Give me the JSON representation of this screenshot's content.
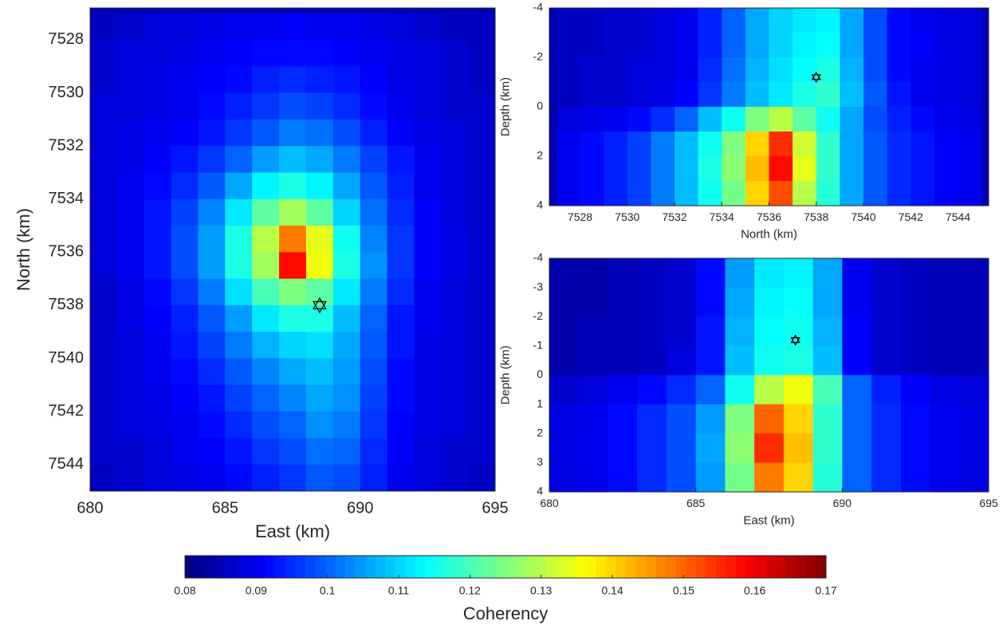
{
  "chart_data": [
    {
      "type": "heatmap",
      "xlabel": "East (km)",
      "ylabel": "North (km)",
      "colormap": "jet",
      "clim": [
        0.08,
        0.17
      ],
      "yreverse": true,
      "xlim": [
        680,
        695
      ],
      "ylim": [
        7526.8,
        7545
      ],
      "xticks": [
        680,
        685,
        690,
        695
      ],
      "yticks": [
        7528,
        7530,
        7532,
        7534,
        7536,
        7538,
        7540,
        7542,
        7544
      ],
      "x": [
        680.5,
        681.5,
        682.5,
        683.5,
        684.5,
        685.5,
        686.5,
        687.5,
        688.5,
        689.5,
        690.5,
        691.5,
        692.5,
        693.5,
        694.5
      ],
      "y": [
        7527.5,
        7528.5,
        7529.5,
        7530.5,
        7531.5,
        7532.5,
        7533.5,
        7534.5,
        7535.5,
        7536.5,
        7537.5,
        7538.5,
        7539.5,
        7540.5,
        7541.5,
        7542.5,
        7543.5,
        7544.5
      ],
      "z": [
        [
          0.086,
          0.087,
          0.088,
          0.088,
          0.089,
          0.09,
          0.09,
          0.091,
          0.09,
          0.09,
          0.089,
          0.088,
          0.087,
          0.086,
          0.086
        ],
        [
          0.087,
          0.088,
          0.088,
          0.089,
          0.09,
          0.091,
          0.092,
          0.092,
          0.092,
          0.091,
          0.09,
          0.089,
          0.088,
          0.087,
          0.086
        ],
        [
          0.087,
          0.088,
          0.089,
          0.09,
          0.091,
          0.092,
          0.094,
          0.095,
          0.094,
          0.093,
          0.091,
          0.089,
          0.088,
          0.087,
          0.086
        ],
        [
          0.088,
          0.088,
          0.089,
          0.09,
          0.092,
          0.094,
          0.096,
          0.098,
          0.097,
          0.095,
          0.092,
          0.09,
          0.088,
          0.087,
          0.087
        ],
        [
          0.088,
          0.089,
          0.09,
          0.091,
          0.093,
          0.096,
          0.099,
          0.102,
          0.101,
          0.098,
          0.094,
          0.091,
          0.089,
          0.088,
          0.087
        ],
        [
          0.088,
          0.089,
          0.091,
          0.093,
          0.096,
          0.1,
          0.105,
          0.108,
          0.106,
          0.102,
          0.097,
          0.093,
          0.09,
          0.088,
          0.087
        ],
        [
          0.088,
          0.09,
          0.092,
          0.095,
          0.099,
          0.106,
          0.113,
          0.116,
          0.113,
          0.106,
          0.099,
          0.094,
          0.09,
          0.088,
          0.087
        ],
        [
          0.088,
          0.09,
          0.093,
          0.097,
          0.103,
          0.112,
          0.122,
          0.128,
          0.122,
          0.11,
          0.101,
          0.095,
          0.091,
          0.088,
          0.087
        ],
        [
          0.088,
          0.09,
          0.093,
          0.098,
          0.105,
          0.116,
          0.13,
          0.148,
          0.134,
          0.115,
          0.103,
          0.096,
          0.091,
          0.089,
          0.087
        ],
        [
          0.088,
          0.09,
          0.093,
          0.098,
          0.105,
          0.116,
          0.128,
          0.158,
          0.135,
          0.116,
          0.104,
          0.096,
          0.091,
          0.089,
          0.087
        ],
        [
          0.087,
          0.089,
          0.092,
          0.096,
          0.102,
          0.111,
          0.12,
          0.125,
          0.122,
          0.112,
          0.102,
          0.095,
          0.09,
          0.088,
          0.087
        ],
        [
          0.087,
          0.089,
          0.091,
          0.094,
          0.099,
          0.105,
          0.112,
          0.116,
          0.116,
          0.108,
          0.1,
          0.093,
          0.09,
          0.088,
          0.087
        ],
        [
          0.087,
          0.088,
          0.09,
          0.093,
          0.097,
          0.102,
          0.107,
          0.11,
          0.111,
          0.106,
          0.099,
          0.093,
          0.089,
          0.088,
          0.087
        ],
        [
          0.087,
          0.088,
          0.09,
          0.092,
          0.095,
          0.099,
          0.103,
          0.106,
          0.108,
          0.105,
          0.098,
          0.092,
          0.089,
          0.088,
          0.087
        ],
        [
          0.087,
          0.088,
          0.089,
          0.091,
          0.093,
          0.097,
          0.1,
          0.103,
          0.106,
          0.104,
          0.097,
          0.092,
          0.089,
          0.088,
          0.087
        ],
        [
          0.087,
          0.088,
          0.089,
          0.09,
          0.092,
          0.095,
          0.098,
          0.1,
          0.104,
          0.102,
          0.096,
          0.091,
          0.089,
          0.088,
          0.087
        ],
        [
          0.087,
          0.087,
          0.088,
          0.09,
          0.091,
          0.093,
          0.096,
          0.098,
          0.101,
          0.1,
          0.095,
          0.091,
          0.088,
          0.087,
          0.087
        ],
        [
          0.086,
          0.087,
          0.088,
          0.089,
          0.09,
          0.092,
          0.094,
          0.096,
          0.099,
          0.098,
          0.094,
          0.09,
          0.088,
          0.087,
          0.086
        ]
      ],
      "marker": {
        "x": 688.5,
        "y": 7538
      }
    },
    {
      "type": "heatmap",
      "xlabel": "North (km)",
      "ylabel": "Depth (km)",
      "colormap": "jet",
      "clim": [
        0.08,
        0.17
      ],
      "yreverse": true,
      "xlim": [
        7526.7,
        7545.3
      ],
      "ylim": [
        -4,
        4
      ],
      "xticks": [
        7528,
        7530,
        7532,
        7534,
        7536,
        7538,
        7540,
        7542,
        7544
      ],
      "yticks": [
        -4,
        -2,
        0,
        2,
        4
      ],
      "x": [
        7527.5,
        7528.5,
        7529.5,
        7530.5,
        7531.5,
        7532.5,
        7533.5,
        7534.5,
        7535.5,
        7536.5,
        7537.5,
        7538.5,
        7539.5,
        7540.5,
        7541.5,
        7542.5,
        7543.5,
        7544.5
      ],
      "y": [
        -3.5,
        -2.5,
        -1.5,
        -0.5,
        0.5,
        1.5,
        2.5,
        3.5
      ],
      "z": [
        [
          0.086,
          0.086,
          0.087,
          0.087,
          0.088,
          0.09,
          0.094,
          0.1,
          0.106,
          0.11,
          0.112,
          0.113,
          0.106,
          0.098,
          0.092,
          0.09,
          0.089,
          0.088
        ],
        [
          0.086,
          0.086,
          0.087,
          0.087,
          0.088,
          0.09,
          0.094,
          0.1,
          0.106,
          0.11,
          0.113,
          0.114,
          0.106,
          0.098,
          0.092,
          0.091,
          0.089,
          0.088
        ],
        [
          0.086,
          0.087,
          0.087,
          0.088,
          0.088,
          0.09,
          0.095,
          0.101,
          0.107,
          0.111,
          0.114,
          0.116,
          0.107,
          0.098,
          0.092,
          0.09,
          0.089,
          0.088
        ],
        [
          0.086,
          0.087,
          0.087,
          0.088,
          0.089,
          0.091,
          0.096,
          0.102,
          0.108,
          0.112,
          0.116,
          0.118,
          0.108,
          0.099,
          0.093,
          0.09,
          0.089,
          0.088
        ],
        [
          0.088,
          0.089,
          0.09,
          0.092,
          0.095,
          0.1,
          0.108,
          0.115,
          0.125,
          0.13,
          0.122,
          0.115,
          0.106,
          0.098,
          0.094,
          0.092,
          0.09,
          0.089
        ],
        [
          0.09,
          0.092,
          0.094,
          0.097,
          0.102,
          0.108,
          0.115,
          0.125,
          0.14,
          0.155,
          0.132,
          0.118,
          0.106,
          0.099,
          0.095,
          0.093,
          0.091,
          0.09
        ],
        [
          0.09,
          0.092,
          0.094,
          0.097,
          0.102,
          0.108,
          0.116,
          0.126,
          0.142,
          0.158,
          0.134,
          0.118,
          0.106,
          0.099,
          0.095,
          0.093,
          0.091,
          0.09
        ],
        [
          0.09,
          0.092,
          0.094,
          0.097,
          0.102,
          0.108,
          0.115,
          0.124,
          0.14,
          0.152,
          0.13,
          0.117,
          0.106,
          0.099,
          0.095,
          0.093,
          0.091,
          0.09
        ]
      ],
      "marker": {
        "x": 7538,
        "y": -1.2
      }
    },
    {
      "type": "heatmap",
      "xlabel": "East (km)",
      "ylabel": "Depth (km)",
      "colormap": "jet",
      "clim": [
        0.08,
        0.17
      ],
      "yreverse": true,
      "xlim": [
        680,
        695
      ],
      "ylim": [
        -4,
        4
      ],
      "xticks": [
        680,
        685,
        690,
        695
      ],
      "yticks": [
        -4,
        -3,
        -2,
        -1,
        0,
        1,
        2,
        3,
        4
      ],
      "x": [
        680.5,
        681.5,
        682.5,
        683.5,
        684.5,
        685.5,
        686.5,
        687.5,
        688.5,
        689.5,
        690.5,
        691.5,
        692.5,
        693.5,
        694.5
      ],
      "y": [
        -3.5,
        -2.5,
        -1.5,
        -0.5,
        0.5,
        1.5,
        2.5,
        3.5
      ],
      "z": [
        [
          0.084,
          0.084,
          0.085,
          0.086,
          0.087,
          0.092,
          0.105,
          0.112,
          0.113,
          0.106,
          0.09,
          0.087,
          0.086,
          0.085,
          0.085
        ],
        [
          0.084,
          0.084,
          0.085,
          0.086,
          0.087,
          0.092,
          0.106,
          0.113,
          0.114,
          0.106,
          0.09,
          0.087,
          0.086,
          0.085,
          0.085
        ],
        [
          0.084,
          0.085,
          0.085,
          0.086,
          0.087,
          0.093,
          0.107,
          0.114,
          0.115,
          0.107,
          0.091,
          0.087,
          0.086,
          0.085,
          0.085
        ],
        [
          0.084,
          0.085,
          0.085,
          0.086,
          0.088,
          0.093,
          0.108,
          0.115,
          0.116,
          0.108,
          0.091,
          0.087,
          0.086,
          0.085,
          0.085
        ],
        [
          0.087,
          0.088,
          0.09,
          0.092,
          0.095,
          0.1,
          0.115,
          0.13,
          0.135,
          0.12,
          0.1,
          0.094,
          0.091,
          0.089,
          0.088
        ],
        [
          0.089,
          0.09,
          0.092,
          0.095,
          0.098,
          0.105,
          0.125,
          0.15,
          0.14,
          0.118,
          0.1,
          0.095,
          0.092,
          0.09,
          0.089
        ],
        [
          0.089,
          0.09,
          0.092,
          0.095,
          0.098,
          0.106,
          0.126,
          0.155,
          0.142,
          0.118,
          0.1,
          0.095,
          0.092,
          0.09,
          0.089
        ],
        [
          0.089,
          0.09,
          0.092,
          0.095,
          0.098,
          0.105,
          0.124,
          0.148,
          0.14,
          0.117,
          0.1,
          0.095,
          0.092,
          0.09,
          0.089
        ]
      ],
      "marker": {
        "x": 688.4,
        "y": -1.2
      }
    },
    {
      "type": "colorbar",
      "label": "Coherency",
      "colormap": "jet",
      "xlim": [
        0.08,
        0.17
      ],
      "xticks": [
        0.08,
        0.09,
        0.1,
        0.11,
        0.12,
        0.13,
        0.14,
        0.15,
        0.16,
        0.17
      ]
    }
  ]
}
